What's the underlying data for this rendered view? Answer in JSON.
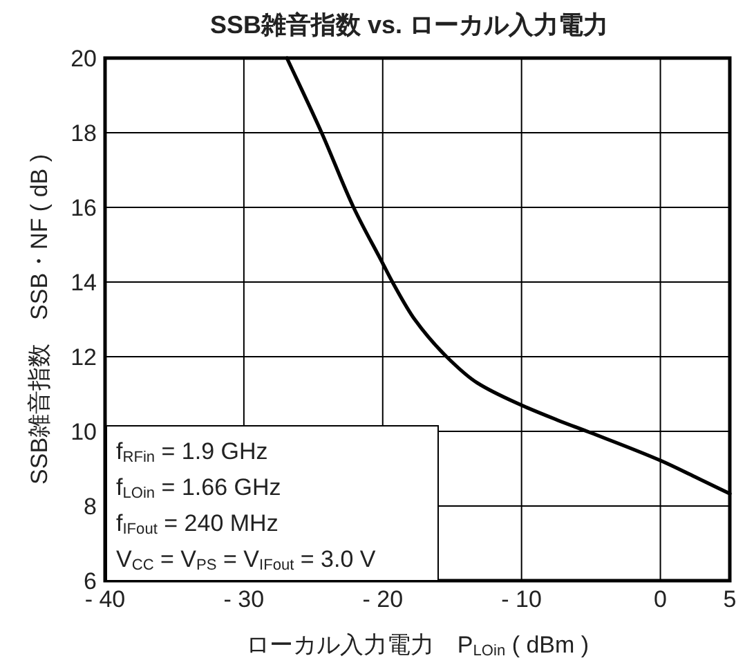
{
  "chart_data": {
    "type": "line",
    "title": "SSB雑音指数 vs. ローカル入力電力",
    "xlabel": "ローカル入力電力　P$_{LOin}$ ( dBm )",
    "ylabel": "SSB雑音指数　SSB・NF ( dB )",
    "series": [
      {
        "color": "#000000",
        "x": [
          -26.9,
          -24.4,
          -22.1,
          -20.0,
          -19.3,
          -17.7,
          -15.4,
          -13.2,
          -10.0,
          -7.4,
          -5.0,
          0,
          2.5,
          5
        ],
        "values": [
          20,
          18,
          16,
          14.5,
          14,
          13.0,
          12,
          11.3,
          10.7,
          10.3,
          9.96,
          9.22,
          8.78,
          8.33
        ]
      }
    ],
    "xlim": [
      -40,
      5
    ],
    "ylim": [
      6,
      20
    ],
    "xticks": [
      {
        "value": -40,
        "label": "- 40"
      },
      {
        "value": -30,
        "label": "- 30"
      },
      {
        "value": -20,
        "label": "- 20"
      },
      {
        "value": -10,
        "label": "- 10"
      },
      0,
      5
    ],
    "yticks": [
      6,
      8,
      10,
      12,
      14,
      16,
      18,
      20
    ],
    "grid": true,
    "marker": "none",
    "line_style": "solid",
    "annotations": [
      "f$_{RFin}$ = 1.9 GHz",
      "f$_{LOin}$ = 1.66 GHz",
      "f$_{IFout}$ = 240 MHz",
      "V$_{CC}$ = V$_{PS}$ = V$_{IFout}$ = 3.0 V"
    ]
  }
}
